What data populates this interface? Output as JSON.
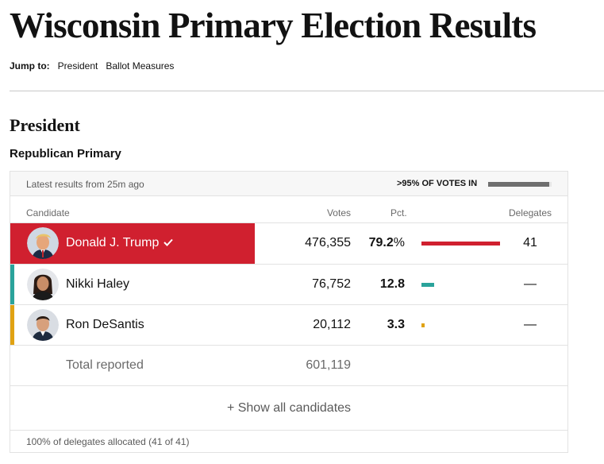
{
  "page": {
    "title": "Wisconsin Primary Election Results"
  },
  "jump": {
    "label": "Jump to:",
    "links": [
      "President",
      "Ballot Measures"
    ]
  },
  "section": {
    "title": "President",
    "race": "Republican Primary"
  },
  "status": {
    "latest": "Latest results from 25m ago",
    "votes_in": ">95% OF VOTES IN",
    "votes_in_fraction": 0.96
  },
  "columns": {
    "candidate": "Candidate",
    "votes": "Votes",
    "pct": "Pct.",
    "delegates": "Delegates"
  },
  "candidates": [
    {
      "name": "Donald J. Trump",
      "votes": "476,355",
      "pct": "79.2",
      "pct_suffix": "%",
      "pct_value": 79.2,
      "delegates": "41",
      "winner": true,
      "color": "#d0202f"
    },
    {
      "name": "Nikki Haley",
      "votes": "76,752",
      "pct": "12.8",
      "pct_suffix": "",
      "pct_value": 12.8,
      "delegates": "—",
      "winner": false,
      "color": "#2aa39b"
    },
    {
      "name": "Ron DeSantis",
      "votes": "20,112",
      "pct": "3.3",
      "pct_suffix": "",
      "pct_value": 3.3,
      "delegates": "—",
      "winner": false,
      "color": "#e0a213"
    }
  ],
  "total": {
    "label": "Total reported",
    "votes": "601,119"
  },
  "show_all": "+ Show all candidates",
  "footer": "100% of delegates allocated (41 of 41)",
  "icons": {
    "check": "checkmark-icon"
  }
}
